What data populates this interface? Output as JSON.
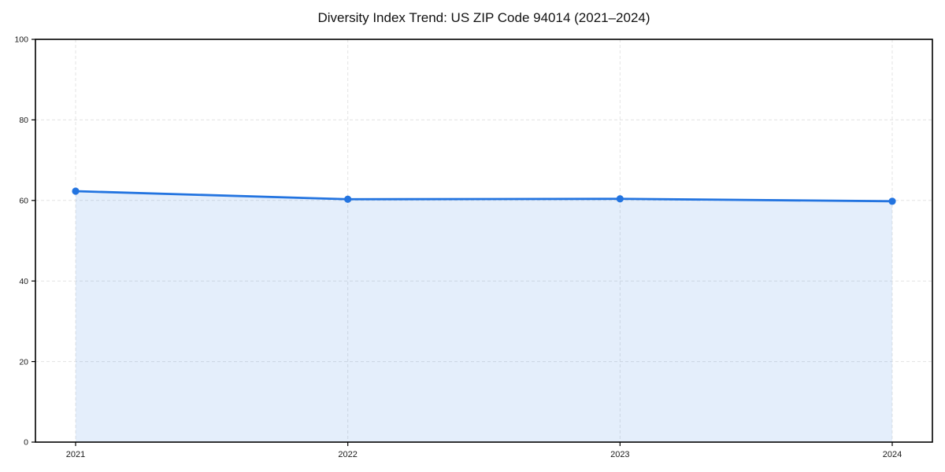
{
  "chart_data": {
    "type": "area",
    "title": "Diversity Index Trend: US ZIP Code 94014 (2021–2024)",
    "categories": [
      "2021",
      "2022",
      "2023",
      "2024"
    ],
    "values": [
      62.3,
      60.3,
      60.4,
      59.8
    ],
    "xlabel": "",
    "ylabel": "",
    "ylim": [
      0,
      100
    ],
    "yticks": [
      0,
      20,
      40,
      60,
      80,
      100
    ],
    "grid": true,
    "legend": "none",
    "colors": {
      "line": "#2374e0",
      "marker": "#2374e0",
      "fill": "rgba(35,116,224,0.12)",
      "gridline": "#e3e3e3",
      "spine": "#000000",
      "tick_label": "#1a1a1a"
    }
  }
}
